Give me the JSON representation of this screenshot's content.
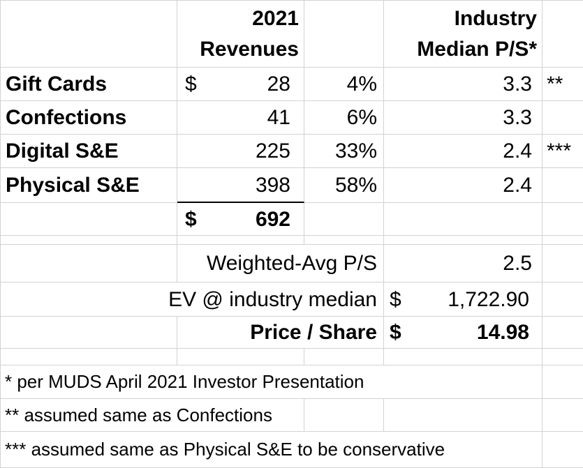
{
  "sheet": {
    "header": {
      "revenues": {
        "line1": "2021",
        "line2": "Revenues"
      },
      "industry": {
        "line1": "Industry",
        "line2": "Median P/S*"
      }
    },
    "segments": [
      {
        "label": "Gift Cards",
        "currency": "$",
        "revenue": "28",
        "mix": "4%",
        "ps": "3.3",
        "note": "**"
      },
      {
        "label": "Confections",
        "currency": "",
        "revenue": "41",
        "mix": "6%",
        "ps": "3.3",
        "note": ""
      },
      {
        "label": "Digital S&E",
        "currency": "",
        "revenue": "225",
        "mix": "33%",
        "ps": "2.4",
        "note": "***"
      },
      {
        "label": "Physical S&E",
        "currency": "",
        "revenue": "398",
        "mix": "58%",
        "ps": "2.4",
        "note": ""
      }
    ],
    "total": {
      "currency": "$",
      "value": "692"
    },
    "summary": {
      "weighted": {
        "label": "Weighted-Avg P/S",
        "value": "2.5"
      },
      "ev": {
        "label": "EV @ industry median",
        "currency": "$",
        "value": "1,722.90"
      },
      "price": {
        "label": "Price / Share",
        "currency": "$",
        "value": "14.98"
      }
    },
    "footnotes": [
      "* per MUDS April 2021 Investor Presentation",
      "** assumed same as Confections",
      "*** assumed same as Physical S&E to be conservative"
    ],
    "colors": {
      "background": "#ffffff",
      "text": "#000000",
      "gridline": "#d2d2d2",
      "total_rule": "#000000"
    }
  }
}
